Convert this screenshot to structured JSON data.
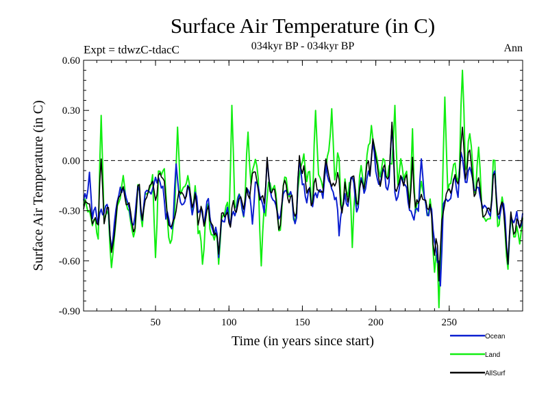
{
  "chart_data": {
    "type": "line",
    "title": "Surface Air Temperature (in C)",
    "subtitle": "034kyr BP - 034kyr BP",
    "experiment": "Expt = tdwzC-tdacC",
    "season": "Ann",
    "xlabel": "Time (in years since start)",
    "ylabel": "Surface Air Temperature (in C)",
    "xlim": [
      1,
      300
    ],
    "ylim": [
      -0.9,
      0.6
    ],
    "x_ticks": [
      "50",
      "100",
      "150",
      "200",
      "250"
    ],
    "y_ticks": [
      "-0.90",
      "-0.60",
      "-0.30",
      "0.00",
      "0.30",
      "0.60"
    ],
    "reference_line": 0.0,
    "grid": false,
    "legend_position": "bottom-right",
    "x_anchor_years": [
      1,
      10,
      20,
      30,
      40,
      50,
      60,
      70,
      80,
      90,
      100,
      110,
      120,
      130,
      140,
      150,
      160,
      170,
      180,
      190,
      200,
      210,
      220,
      230,
      240,
      250,
      260,
      270,
      280,
      290,
      300
    ],
    "series": [
      {
        "name": "Ocean",
        "color": "#0a1ed0",
        "anchors": [
          -0.3,
          -0.28,
          -0.35,
          -0.22,
          -0.3,
          -0.18,
          -0.3,
          -0.2,
          -0.25,
          -0.4,
          -0.3,
          -0.22,
          -0.2,
          -0.25,
          -0.3,
          -0.22,
          -0.25,
          -0.1,
          -0.3,
          -0.2,
          -0.05,
          -0.15,
          -0.2,
          -0.3,
          -0.35,
          -0.18,
          -0.1,
          -0.2,
          -0.15,
          -0.35,
          -0.3
        ],
        "peaks": [
          [
            5,
            -0.07
          ],
          [
            20,
            -0.53
          ],
          [
            26,
            -0.16
          ],
          [
            50,
            -0.1
          ],
          [
            57,
            -0.35
          ],
          [
            64,
            -0.02
          ],
          [
            93,
            -0.58
          ],
          [
            116,
            -0.38
          ],
          [
            126,
            0.01
          ],
          [
            148,
            0.01
          ],
          [
            166,
            -0.02
          ],
          [
            175,
            -0.45
          ],
          [
            198,
            0.11
          ],
          [
            211,
            0.21
          ],
          [
            231,
            0.01
          ],
          [
            242,
            -0.61
          ],
          [
            244,
            -0.75
          ],
          [
            258,
            0.05
          ],
          [
            290,
            -0.62
          ],
          [
            298,
            -0.4
          ]
        ]
      },
      {
        "name": "Land",
        "color": "#11ee11",
        "anchors": [
          -0.35,
          -0.3,
          -0.4,
          -0.2,
          -0.35,
          -0.15,
          -0.35,
          -0.1,
          -0.3,
          -0.45,
          -0.25,
          -0.2,
          -0.15,
          -0.2,
          -0.35,
          -0.1,
          -0.2,
          0.1,
          -0.3,
          -0.15,
          0.05,
          -0.1,
          -0.15,
          -0.3,
          -0.4,
          -0.1,
          0.05,
          -0.2,
          -0.1,
          -0.4,
          -0.35
        ],
        "peaks": [
          [
            13,
            0.27
          ],
          [
            20,
            -0.64
          ],
          [
            50,
            -0.58
          ],
          [
            65,
            0.2
          ],
          [
            82,
            -0.62
          ],
          [
            93,
            -0.62
          ],
          [
            102,
            0.33
          ],
          [
            113,
            0.17
          ],
          [
            122,
            -0.63
          ],
          [
            159,
            0.3
          ],
          [
            170,
            0.31
          ],
          [
            184,
            -0.52
          ],
          [
            197,
            0.21
          ],
          [
            213,
            0.33
          ],
          [
            225,
            0.19
          ],
          [
            243,
            -0.88
          ],
          [
            247,
            0.38
          ],
          [
            259,
            0.54
          ],
          [
            270,
            0.08
          ],
          [
            290,
            -0.65
          ]
        ]
      },
      {
        "name": "AllSurf",
        "color": "#000000",
        "anchors": [
          -0.32,
          -0.29,
          -0.37,
          -0.21,
          -0.32,
          -0.17,
          -0.32,
          -0.16,
          -0.27,
          -0.42,
          -0.28,
          -0.21,
          -0.18,
          -0.23,
          -0.32,
          -0.17,
          -0.23,
          -0.03,
          -0.3,
          -0.18,
          -0.01,
          -0.13,
          -0.18,
          -0.3,
          -0.37,
          -0.15,
          -0.04,
          -0.2,
          -0.13,
          -0.37,
          -0.32
        ],
        "peaks": [
          [
            13,
            0.01
          ],
          [
            20,
            -0.55
          ],
          [
            93,
            -0.56
          ],
          [
            126,
            0.02
          ],
          [
            148,
            0.03
          ],
          [
            166,
            0.01
          ],
          [
            198,
            0.13
          ],
          [
            211,
            0.23
          ],
          [
            225,
            0.02
          ],
          [
            243,
            -0.72
          ],
          [
            259,
            0.2
          ],
          [
            290,
            -0.62
          ]
        ]
      }
    ]
  }
}
